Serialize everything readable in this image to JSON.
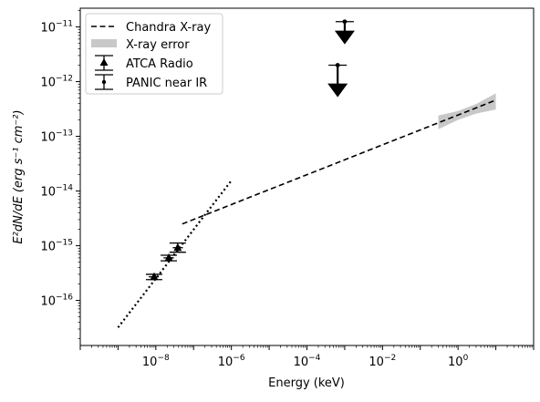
{
  "chart_data": {
    "type": "line",
    "xscale": "log",
    "yscale": "log",
    "xlim": [
      1e-10,
      100.0
    ],
    "ylim": [
      1.5e-17,
      2.2e-11
    ],
    "xlabel": "Energy (keV)",
    "ylabel": "E²dN/dE (erg s⁻¹ cm⁻²)",
    "grid": false,
    "legend_position": "top-left",
    "x_ticks": [
      {
        "value": 1e-08,
        "mantissa": "10",
        "exp": "−8"
      },
      {
        "value": 1e-06,
        "mantissa": "10",
        "exp": "−6"
      },
      {
        "value": 0.0001,
        "mantissa": "10",
        "exp": "−4"
      },
      {
        "value": 0.01,
        "mantissa": "10",
        "exp": "−2"
      },
      {
        "value": 1,
        "mantissa": "10",
        "exp": "0"
      }
    ],
    "y_ticks": [
      {
        "value": 1e-16,
        "mantissa": "10",
        "exp": "−16"
      },
      {
        "value": 1e-15,
        "mantissa": "10",
        "exp": "−15"
      },
      {
        "value": 1e-14,
        "mantissa": "10",
        "exp": "−14"
      },
      {
        "value": 1e-13,
        "mantissa": "10",
        "exp": "−13"
      },
      {
        "value": 1e-12,
        "mantissa": "10",
        "exp": "−12"
      },
      {
        "value": 1e-11,
        "mantissa": "10",
        "exp": "−11"
      }
    ],
    "series": [
      {
        "name": "Chandra X-ray",
        "kind": "dashed-line",
        "x": [
          5e-08,
          10
        ],
        "y": [
          2.5e-15,
          4.6e-13
        ]
      },
      {
        "name": "X-ray error",
        "kind": "band",
        "x": [
          0.3,
          1,
          3,
          10
        ],
        "y_low": [
          1.35e-13,
          2e-13,
          2.6e-13,
          3.1e-13
        ],
        "y_high": [
          2.4e-13,
          2.9e-13,
          3.9e-13,
          6.1e-13
        ]
      },
      {
        "name": "",
        "kind": "dotted-line",
        "x": [
          1e-09,
          1e-06
        ],
        "y": [
          3.2e-17,
          1.55e-14
        ]
      },
      {
        "name": "ATCA Radio",
        "kind": "errorbar-triangle",
        "points": [
          {
            "x": 9e-09,
            "y": 2.7e-16,
            "xerr_low": 6.5e-09,
            "xerr_high": 1.2e-08,
            "yerr_low": 2.4e-16,
            "yerr_high": 3e-16
          },
          {
            "x": 2.2e-08,
            "y": 6e-16,
            "xerr_low": 1.6e-08,
            "xerr_high": 3e-08,
            "yerr_low": 5.3e-16,
            "yerr_high": 6.7e-16
          },
          {
            "x": 3.8e-08,
            "y": 9.2e-16,
            "xerr_low": 2.8e-08,
            "xerr_high": 5.2e-08,
            "yerr_low": 7.6e-16,
            "yerr_high": 1.12e-15
          }
        ]
      },
      {
        "name": "PANIC near IR",
        "kind": "upper-limit",
        "points": [
          {
            "x": 0.001,
            "y": 1.25e-11,
            "y_arrow_tip": 4.8e-12
          },
          {
            "x": 0.00065,
            "y": 2e-12,
            "y_arrow_tip": 5.2e-13
          }
        ]
      }
    ]
  },
  "legend": {
    "items": [
      {
        "label": "Chandra X-ray",
        "icon": "dashed-line-icon"
      },
      {
        "label": "X-ray error",
        "icon": "gray-band-icon"
      },
      {
        "label": "ATCA Radio",
        "icon": "triangle-errorbar-icon"
      },
      {
        "label": "PANIC near IR",
        "icon": "dot-errorbar-icon"
      }
    ]
  },
  "colors": {
    "line": "#000000",
    "band": "#c8c8c8",
    "axes": "#000000",
    "background": "#ffffff"
  }
}
